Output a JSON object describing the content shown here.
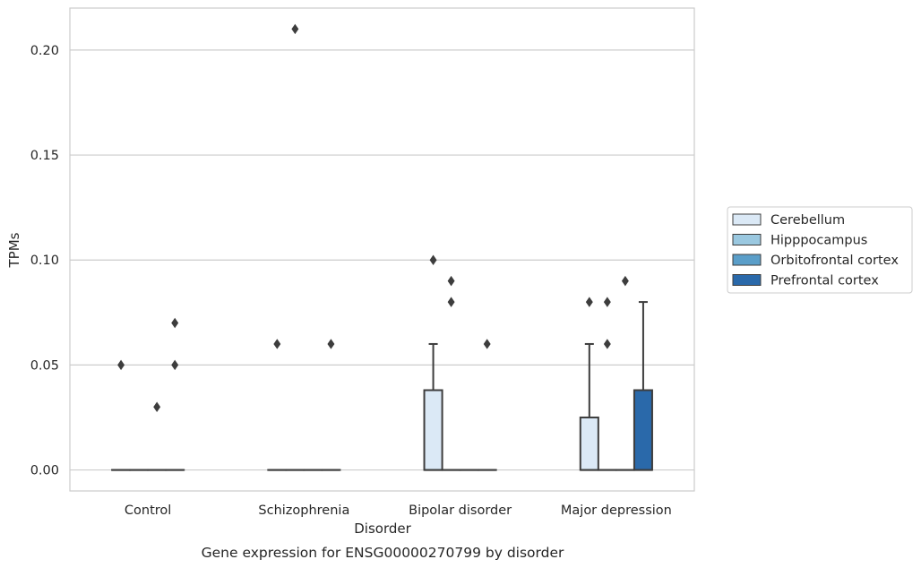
{
  "chart_data": {
    "type": "box",
    "title": "",
    "caption": "Gene expression for ENSG00000270799 by disorder",
    "xlabel": "Disorder",
    "ylabel": "TPMs",
    "categories": [
      "Control",
      "Schizophrenia",
      "Bipolar disorder",
      "Major depression"
    ],
    "ylim": [
      -0.01,
      0.22
    ],
    "yticks": [
      0.0,
      0.05,
      0.1,
      0.15,
      0.2
    ],
    "ytick_labels": [
      "0.00",
      "0.05",
      "0.10",
      "0.15",
      "0.20"
    ],
    "grid": "horizontal",
    "legend_position": "outside-right",
    "series": [
      {
        "name": "Cerebellum",
        "color": "#dbe9f6",
        "boxes": [
          {
            "q1": 0,
            "median": 0,
            "q3": 0,
            "whisker_low": 0,
            "whisker_high": 0,
            "outliers": [
              0.05
            ]
          },
          {
            "q1": 0,
            "median": 0,
            "q3": 0,
            "whisker_low": 0,
            "whisker_high": 0,
            "outliers": [
              0.06
            ]
          },
          {
            "q1": 0,
            "median": 0,
            "q3": 0.038,
            "whisker_low": 0,
            "whisker_high": 0.06,
            "outliers": [
              0.1
            ]
          },
          {
            "q1": 0,
            "median": 0,
            "q3": 0.025,
            "whisker_low": 0,
            "whisker_high": 0.06,
            "outliers": [
              0.08
            ]
          }
        ]
      },
      {
        "name": "Hipppocampus",
        "color": "#9ac8e0",
        "boxes": [
          {
            "q1": 0,
            "median": 0,
            "q3": 0,
            "whisker_low": 0,
            "whisker_high": 0,
            "outliers": []
          },
          {
            "q1": 0,
            "median": 0,
            "q3": 0,
            "whisker_low": 0,
            "whisker_high": 0,
            "outliers": [
              0.21
            ]
          },
          {
            "q1": 0,
            "median": 0,
            "q3": 0,
            "whisker_low": 0,
            "whisker_high": 0,
            "outliers": [
              0.09,
              0.08
            ]
          },
          {
            "q1": 0,
            "median": 0,
            "q3": 0,
            "whisker_low": 0,
            "whisker_high": 0,
            "outliers": [
              0.08,
              0.06
            ]
          }
        ]
      },
      {
        "name": "Orbitofrontal cortex",
        "color": "#5a9ec9",
        "boxes": [
          {
            "q1": 0,
            "median": 0,
            "q3": 0,
            "whisker_low": 0,
            "whisker_high": 0,
            "outliers": [
              0.03
            ]
          },
          {
            "q1": 0,
            "median": 0,
            "q3": 0,
            "whisker_low": 0,
            "whisker_high": 0,
            "outliers": []
          },
          {
            "q1": 0,
            "median": 0,
            "q3": 0,
            "whisker_low": 0,
            "whisker_high": 0,
            "outliers": []
          },
          {
            "q1": 0,
            "median": 0,
            "q3": 0,
            "whisker_low": 0,
            "whisker_high": 0,
            "outliers": [
              0.09
            ]
          }
        ]
      },
      {
        "name": "Prefrontal cortex",
        "color": "#2a69aa",
        "boxes": [
          {
            "q1": 0,
            "median": 0,
            "q3": 0,
            "whisker_low": 0,
            "whisker_high": 0,
            "outliers": [
              0.07,
              0.05
            ]
          },
          {
            "q1": 0,
            "median": 0,
            "q3": 0,
            "whisker_low": 0,
            "whisker_high": 0,
            "outliers": [
              0.06
            ]
          },
          {
            "q1": 0,
            "median": 0,
            "q3": 0,
            "whisker_low": 0,
            "whisker_high": 0,
            "outliers": [
              0.06
            ]
          },
          {
            "q1": 0,
            "median": 0,
            "q3": 0.038,
            "whisker_low": 0,
            "whisker_high": 0.08,
            "outliers": []
          }
        ]
      }
    ]
  },
  "colors": {
    "grid": "#cccccc",
    "frame": "#cccccc",
    "box_edge": "#3d3d3d",
    "text": "#262626"
  }
}
